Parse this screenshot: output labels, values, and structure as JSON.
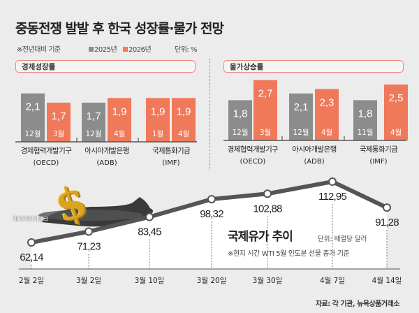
{
  "title": "중동전쟁 발발 후 한국 성장률·물가 전망",
  "legend": {
    "note": "※전년대비 기준",
    "series": [
      "2025년",
      "2026년"
    ],
    "unit": "단위: %"
  },
  "colors": {
    "gray": "#8c8c8c",
    "orange": "#f0795a",
    "line": "#555555"
  },
  "chart_data": [
    {
      "type": "bar",
      "title": "경제성장률",
      "categories": [
        {
          "name": "경제협력개발기구",
          "abbr": "(OECD)"
        },
        {
          "name": "아시아개발은행",
          "abbr": "(ADB)"
        },
        {
          "name": "국제통화기금",
          "abbr": "(IMF)"
        }
      ],
      "bars": [
        [
          {
            "value": 2.1,
            "label": "2,1",
            "month": "12월",
            "series": "2025년"
          },
          {
            "value": 1.7,
            "label": "1,7",
            "month": "3월",
            "series": "2026년"
          }
        ],
        [
          {
            "value": 1.7,
            "label": "1,7",
            "month": "12월",
            "series": "2025년"
          },
          {
            "value": 1.9,
            "label": "1,9",
            "month": "4월",
            "series": "2026년"
          }
        ],
        [
          {
            "value": 1.9,
            "label": "1,9",
            "month": "1월",
            "series": "2026년"
          },
          {
            "value": 1.9,
            "label": "1,9",
            "month": "4월",
            "series": "2026년"
          }
        ]
      ],
      "unit": "%"
    },
    {
      "type": "bar",
      "title": "물가상승률",
      "categories": [
        {
          "name": "경제협력개발기구",
          "abbr": "(OECD)"
        },
        {
          "name": "아시아개발은행",
          "abbr": "(ADB)"
        },
        {
          "name": "국제통화기금",
          "abbr": "(IMF)"
        }
      ],
      "bars": [
        [
          {
            "value": 1.8,
            "label": "1,8",
            "month": "12월",
            "series": "2025년"
          },
          {
            "value": 2.7,
            "label": "2,7",
            "month": "3월",
            "series": "2026년"
          }
        ],
        [
          {
            "value": 2.1,
            "label": "2,1",
            "month": "12월",
            "series": "2025년"
          },
          {
            "value": 2.3,
            "label": "2,3",
            "month": "4월",
            "series": "2026년"
          }
        ],
        [
          {
            "value": 1.8,
            "label": "1,8",
            "month": "11월",
            "series": "2025년"
          },
          {
            "value": 2.5,
            "label": "2,5",
            "month": "4월",
            "series": "2026년"
          }
        ]
      ],
      "unit": "%"
    },
    {
      "type": "line",
      "title": "국제유가 추이",
      "unit": "단위: 배럴당 달러",
      "note": "※현지 시간 WTI 5월 인도분 선물 종가 기준",
      "x": [
        "2월 2일",
        "3월 2일",
        "3월 10일",
        "3월 20일",
        "3월 30일",
        "4월 7일",
        "4월 14일"
      ],
      "y": [
        62.14,
        71.23,
        83.45,
        98.32,
        102.88,
        112.95,
        91.28
      ],
      "labels": [
        "62,14",
        "71,23",
        "83,45",
        "98,32",
        "102,88",
        "112,95",
        "91,28"
      ]
    }
  ],
  "watermark": "게티이미지뱅크",
  "source": "자료: 각 기관, 뉴욕상품거래소"
}
